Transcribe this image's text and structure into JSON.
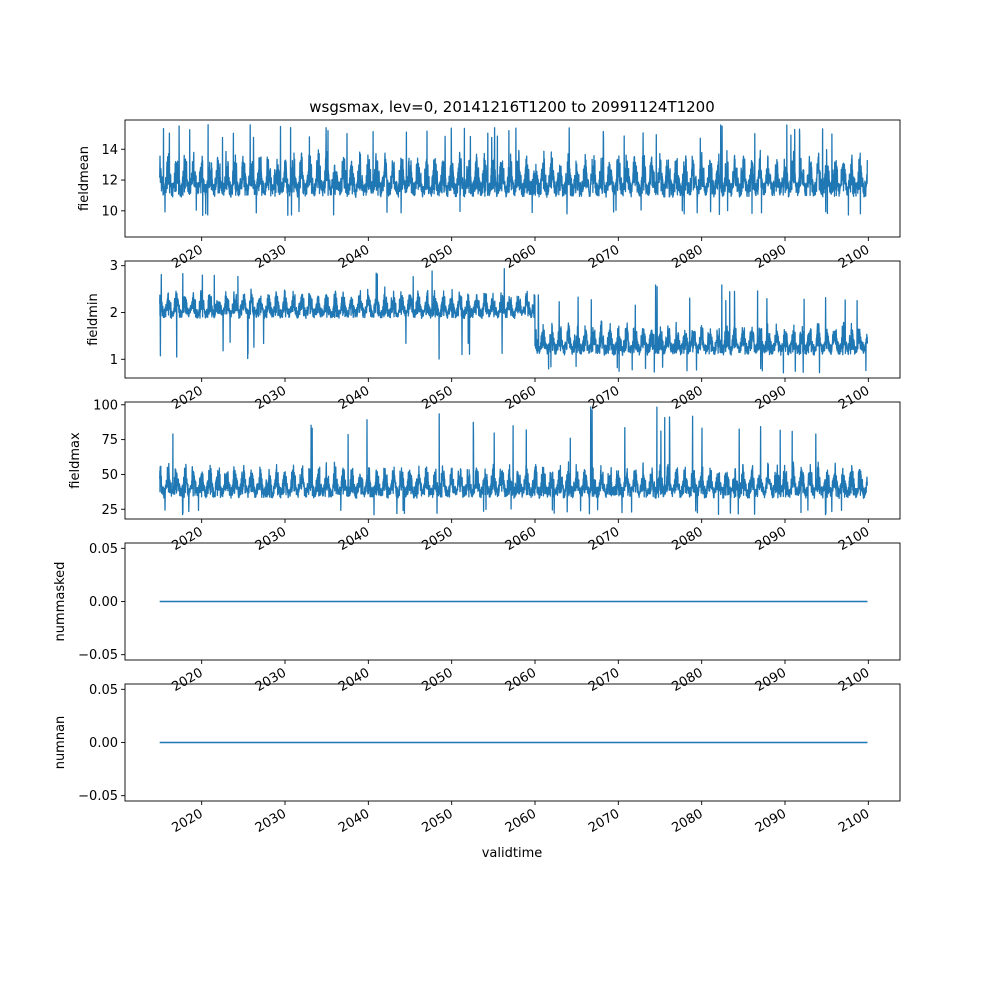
{
  "chart_data": {
    "type": "line",
    "title": "wsgsmax, lev=0, 20141216T1200 to 20991124T1200",
    "xlabel": "validtime",
    "x_range": [
      "2014-12-16",
      "2099-11-24"
    ],
    "xlim": [
      2010.8,
      2103.8
    ],
    "x_ticks": [
      "2020",
      "2030",
      "2040",
      "2050",
      "2060",
      "2070",
      "2080",
      "2090",
      "2100"
    ],
    "grid": false,
    "line_color": "#1f77b4",
    "panels": [
      {
        "ylabel": "fieldmean",
        "ylim": [
          8.3,
          15.9
        ],
        "y_ticks": [
          "10",
          "12",
          "14"
        ],
        "y_tick_values": [
          10,
          12,
          14
        ],
        "segments": [
          {
            "x_start": 2014.96,
            "x_end": 2099.9,
            "mean": 11.8,
            "low": 10.3,
            "high": 14.1,
            "min": 9.7,
            "max": 15.6
          }
        ]
      },
      {
        "ylabel": "fieldmin",
        "ylim": [
          0.6,
          3.1
        ],
        "y_ticks": [
          "1",
          "2",
          "3"
        ],
        "y_tick_values": [
          1,
          2,
          3
        ],
        "segments": [
          {
            "x_start": 2014.96,
            "x_end": 2060.0,
            "mean": 2.15,
            "low": 1.75,
            "high": 2.55,
            "min": 1.0,
            "max": 3.0
          },
          {
            "x_start": 2060.0,
            "x_end": 2099.9,
            "mean": 1.3,
            "low": 0.95,
            "high": 1.85,
            "min": 0.7,
            "max": 2.6
          }
        ]
      },
      {
        "ylabel": "fieldmax",
        "ylim": [
          18,
          102
        ],
        "y_ticks": [
          "25",
          "50",
          "75",
          "100"
        ],
        "y_tick_values": [
          25,
          50,
          75,
          100
        ],
        "segments": [
          {
            "x_start": 2014.96,
            "x_end": 2099.9,
            "mean": 38,
            "low": 28,
            "high": 60,
            "min": 21,
            "max": 99
          }
        ]
      },
      {
        "ylabel": "nummasked",
        "ylim": [
          -0.055,
          0.055
        ],
        "y_ticks": [
          "−0.05",
          "0.00",
          "0.05"
        ],
        "y_tick_values": [
          -0.05,
          0,
          0.05
        ],
        "constant": 0.0
      },
      {
        "ylabel": "numnan",
        "ylim": [
          -0.055,
          0.055
        ],
        "y_ticks": [
          "−0.05",
          "0.00",
          "0.05"
        ],
        "y_tick_values": [
          -0.05,
          0,
          0.05
        ],
        "constant": 0.0
      }
    ]
  }
}
